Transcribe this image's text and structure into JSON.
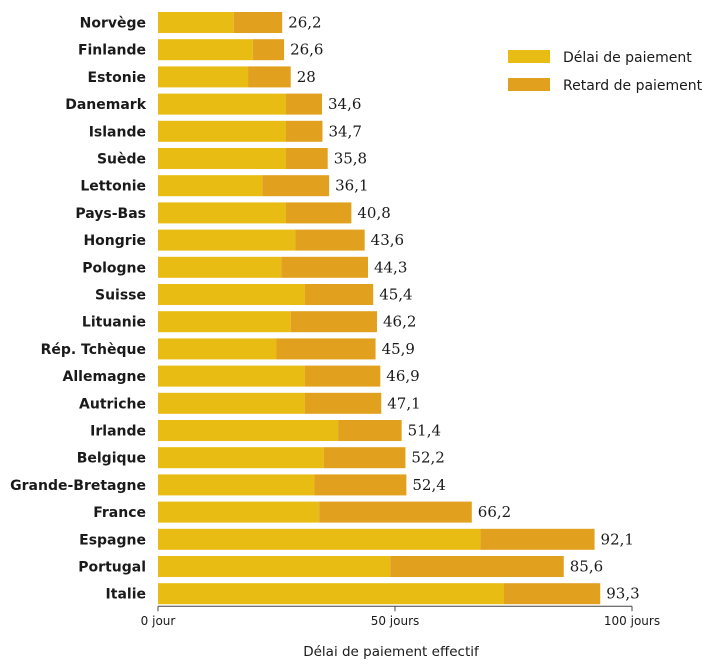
{
  "chart_data": {
    "type": "bar",
    "orientation": "horizontal",
    "stacked": true,
    "categories": [
      "Norvège",
      "Finlande",
      "Estonie",
      "Danemark",
      "Islande",
      "Suède",
      "Lettonie",
      "Pays-Bas",
      "Hongrie",
      "Pologne",
      "Suisse",
      "Lituanie",
      "Rép. Tchèque",
      "Allemagne",
      "Autriche",
      "Irlande",
      "Belgique",
      "Grande-Bretagne",
      "France",
      "Espagne",
      "Portugal",
      "Italie"
    ],
    "series": [
      {
        "name": "Délai de paiement",
        "color": "#e8bc12",
        "values": [
          16,
          20,
          19,
          27,
          27,
          27,
          22,
          27,
          29,
          26,
          31,
          28,
          25,
          31,
          31,
          38,
          35,
          33,
          34,
          68,
          49,
          73
        ]
      },
      {
        "name": "Retard de paiement",
        "color": "#e1a01d",
        "values": [
          10.2,
          6.6,
          9,
          7.6,
          7.7,
          8.8,
          14.1,
          13.8,
          14.6,
          18.3,
          14.4,
          18.2,
          20.9,
          15.9,
          16.1,
          13.4,
          17.2,
          19.4,
          32.2,
          24.1,
          36.6,
          20.3
        ]
      }
    ],
    "data_labels": [
      "26,2",
      "26,6",
      "28",
      "34,6",
      "34,7",
      "35,8",
      "36,1",
      "40,8",
      "43,6",
      "44,3",
      "45,4",
      "46,2",
      "45,9",
      "46,9",
      "47,1",
      "51,4",
      "52,2",
      "52,4",
      "66,2",
      "92,1",
      "85,6",
      "93,3"
    ],
    "xlim": [
      0,
      100
    ],
    "x_ticks": [
      {
        "value": 0,
        "label": "0 jour"
      },
      {
        "value": 50,
        "label": "50 jours"
      },
      {
        "value": 100,
        "label": "100 jours"
      }
    ],
    "xlabel": "Délai de paiement effectif",
    "ylabel": "",
    "title": "",
    "legend_position": "top-right",
    "grid": false
  }
}
